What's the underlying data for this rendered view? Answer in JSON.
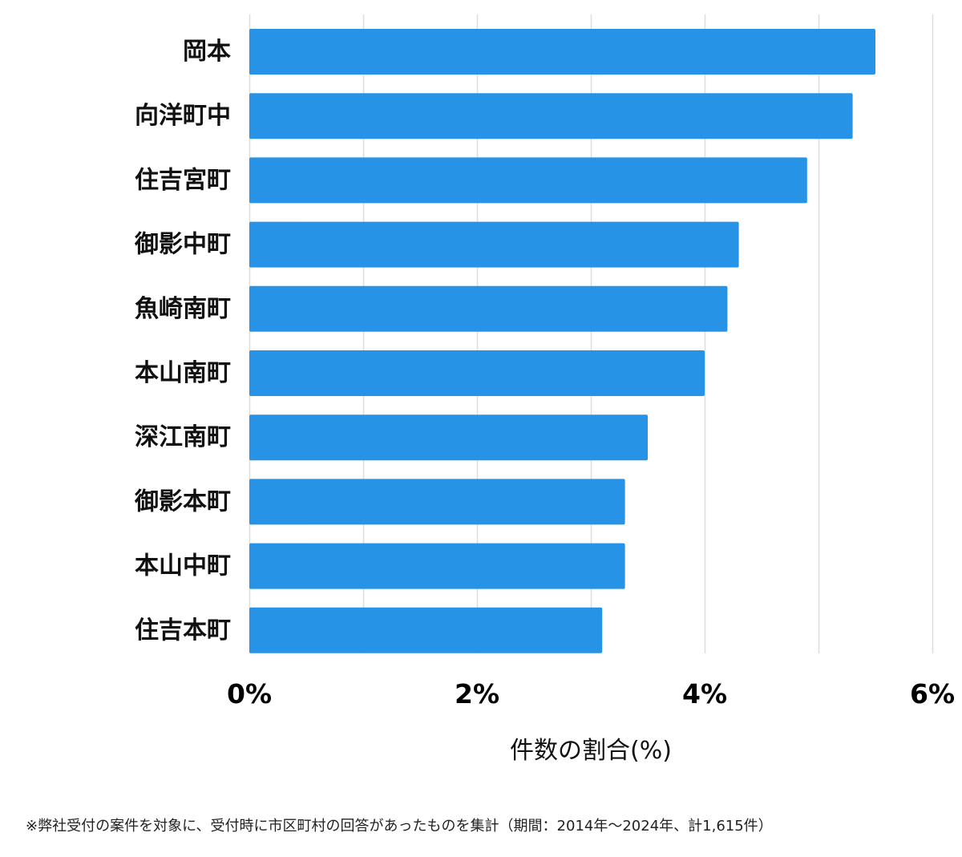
{
  "chart_data": {
    "type": "bar",
    "orientation": "horizontal",
    "categories": [
      "岡本",
      "向洋町中",
      "住吉宮町",
      "御影中町",
      "魚崎南町",
      "本山南町",
      "深江南町",
      "御影本町",
      "本山中町",
      "住吉本町"
    ],
    "values": [
      5.5,
      5.3,
      4.9,
      4.3,
      4.2,
      4.0,
      3.5,
      3.3,
      3.3,
      3.1
    ],
    "xlim": [
      0,
      6
    ],
    "xticks": [
      0,
      2,
      4,
      6
    ],
    "tick_labels": [
      "0%",
      "2%",
      "4%",
      "6%"
    ],
    "xlabel": "件数の割合(%)",
    "ylabel": "",
    "title": "",
    "grid": true,
    "legend": "none",
    "bar_color": "#2693E6",
    "grid_color": "#DDDDDD"
  },
  "footnote": "※弊社受付の案件を対象に、受付時に市区町村の回答があったものを集計（期間：2014年～2024年、計1,615件）"
}
